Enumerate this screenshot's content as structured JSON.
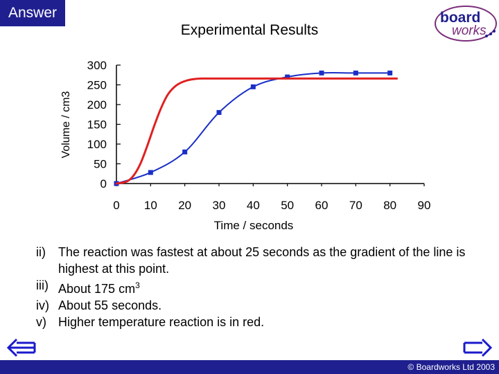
{
  "header": {
    "answer_label": "Answer",
    "logo_top": "board",
    "logo_bottom": "works"
  },
  "chart_data": {
    "type": "line",
    "title": "Experimental Results",
    "xlabel": "Time / seconds",
    "ylabel": "Volume / cm3",
    "xlim": [
      0,
      90
    ],
    "ylim": [
      0,
      300
    ],
    "x_ticks": [
      0,
      10,
      20,
      30,
      40,
      50,
      60,
      70,
      80,
      90
    ],
    "y_ticks": [
      0,
      50,
      100,
      150,
      200,
      250,
      300
    ],
    "grid": false,
    "legend": "none",
    "series": [
      {
        "color": "#1a2fc7",
        "markers": true,
        "x": [
          0,
          10,
          20,
          30,
          40,
          50,
          60,
          70,
          80
        ],
        "y": [
          0,
          28,
          80,
          180,
          245,
          270,
          280,
          280,
          280
        ]
      },
      {
        "color": "#e02020",
        "markers": false,
        "x": [
          0,
          3,
          5,
          7,
          9,
          11,
          13,
          15,
          17,
          19,
          21,
          23,
          25,
          30,
          40,
          50,
          60,
          70,
          80,
          82
        ],
        "y": [
          0,
          5,
          20,
          50,
          95,
          145,
          190,
          225,
          245,
          256,
          262,
          265,
          266,
          266,
          266,
          266,
          266,
          266,
          266,
          266
        ]
      }
    ]
  },
  "answers": [
    {
      "num": "ii)",
      "text": "The reaction was fastest at about 25 seconds as the gradient of the line is highest at this point."
    },
    {
      "num": "iii)",
      "text": "About 175 cm",
      "sup": "3"
    },
    {
      "num": "iv)",
      "text": "About 55 seconds."
    },
    {
      "num": "v)",
      "text": "Higher temperature reaction is in red."
    }
  ],
  "footer": {
    "copyright": "© Boardworks Ltd 2003"
  },
  "colors": {
    "brand": "#1f1f8f",
    "arrow": "#1a1acc"
  },
  "icons": {
    "prev": "arrow-left-icon",
    "next": "arrow-right-icon"
  }
}
